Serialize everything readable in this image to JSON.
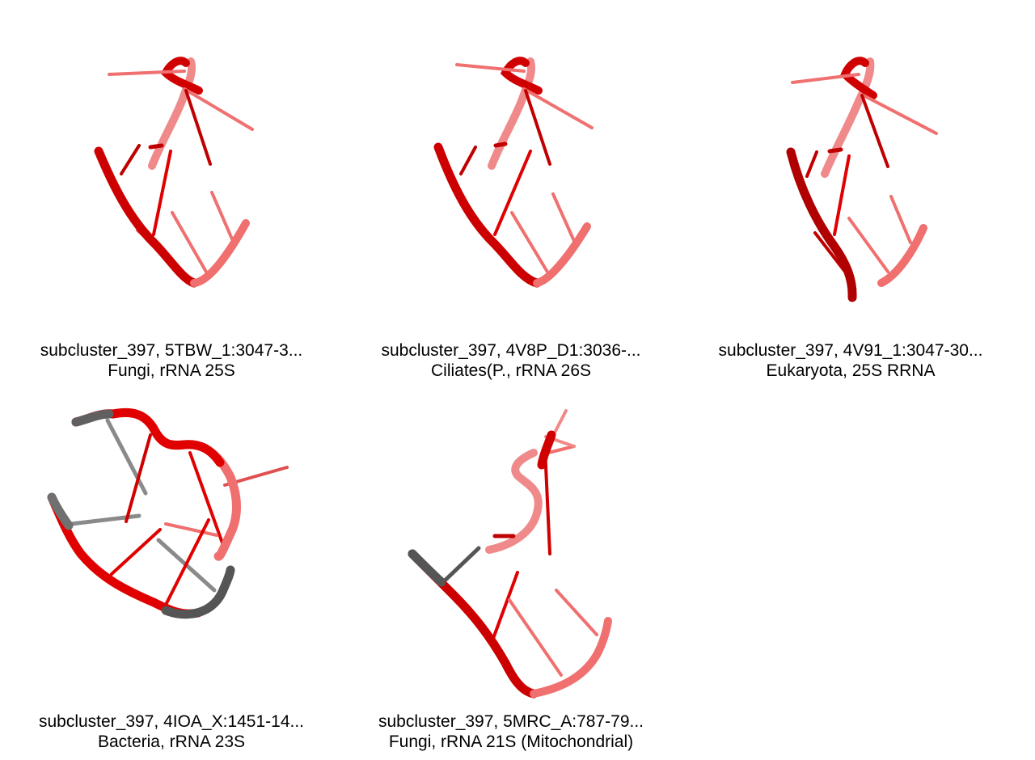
{
  "panels": [
    {
      "title": "subcluster_397, 5TBW_1:3047-3...",
      "subtitle": "Fungi, rRNA 25S"
    },
    {
      "title": "subcluster_397, 4V8P_D1:3036-...",
      "subtitle": "Ciliates(P., rRNA 26S"
    },
    {
      "title": "subcluster_397, 4V91_1:3047-30...",
      "subtitle": "Eukaryota, 25S RRNA"
    },
    {
      "title": "subcluster_397, 4IOA_X:1451-14...",
      "subtitle": "Bacteria, rRNA 23S"
    },
    {
      "title": "subcluster_397, 5MRC_A:787-79...",
      "subtitle": "Fungi, rRNA 21S (Mitochondrial)"
    }
  ],
  "colors": {
    "backbone_dark": "#b00000",
    "backbone": "#e00000",
    "backbone_light": "#f07070",
    "unaligned": "#555555",
    "unaligned_light": "#999999"
  }
}
